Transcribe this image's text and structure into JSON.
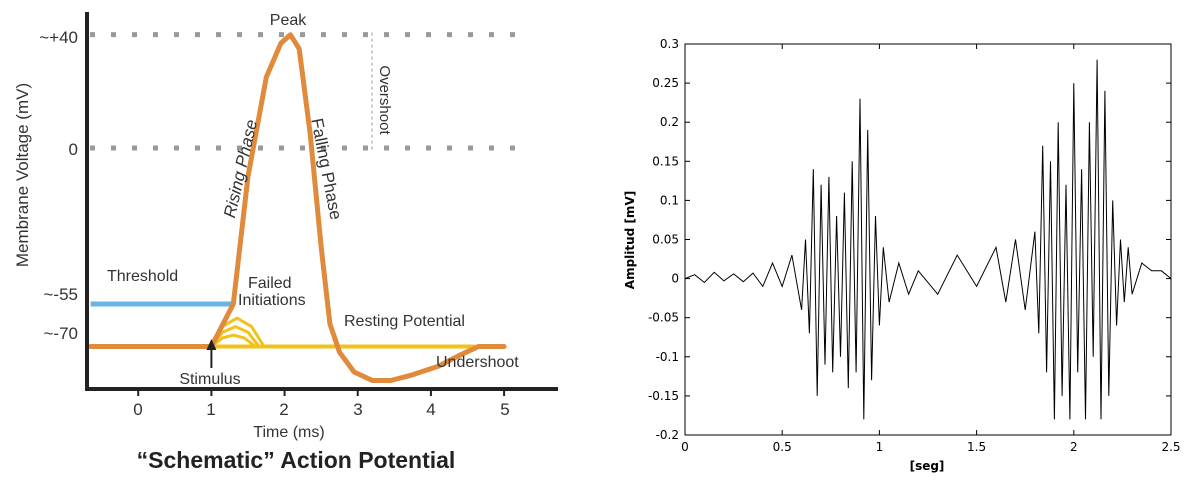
{
  "left": {
    "title": "“Schematic” Action Potential",
    "ylabel": "Membrane Voltage (mV)",
    "xlabel": "Time (ms)",
    "ytick_labels": [
      "~+40",
      "0",
      "~-55",
      "~-70"
    ],
    "xtick_labels": [
      "0",
      "1",
      "2",
      "3",
      "4",
      "5"
    ],
    "annotations": {
      "peak": "Peak",
      "rising": "Rising Phase",
      "falling": "Falling Phase",
      "overshoot": "Overshoot",
      "threshold": "Threshold",
      "failed_1": "Failed",
      "failed_2": "Initiations",
      "resting": "Resting Potential",
      "undershoot": "Undershoot",
      "stimulus": "Stimulus"
    },
    "colors": {
      "action_potential": "#e08a3c",
      "threshold": "#6ab4e6",
      "failed": "#f2c21b",
      "resting": "#f2c21b",
      "dotted": "#9a9a9a",
      "axis": "#222222"
    }
  },
  "chart_data": [
    {
      "type": "line",
      "title": "“Schematic” Action Potential",
      "xlabel": "Time (ms)",
      "ylabel": "Membrane Voltage (mV)",
      "xlim": [
        -0.7,
        5.6
      ],
      "ylim": [
        -85,
        48
      ],
      "reference_levels": [
        {
          "value": 40,
          "label": "~+40",
          "style": "dotted"
        },
        {
          "value": 0,
          "label": "0",
          "style": "dotted"
        },
        {
          "value": -55,
          "label": "~-55",
          "label_line": "Threshold"
        },
        {
          "value": -70,
          "label": "~-70",
          "label_line": "Resting Potential"
        }
      ],
      "action_potential": {
        "x": [
          -0.65,
          1.0,
          1.3,
          1.5,
          1.75,
          1.95,
          2.08,
          2.2,
          2.35,
          2.5,
          2.62,
          2.75,
          2.95,
          3.2,
          3.45,
          3.75,
          4.1,
          4.4,
          4.65,
          5.0
        ],
        "y": [
          -70,
          -70,
          -55,
          -10,
          25,
          37,
          40,
          35,
          5,
          -35,
          -62,
          -72,
          -79,
          -82,
          -82,
          -80,
          -77,
          -73,
          -70,
          -70
        ]
      },
      "threshold": {
        "x": [
          -0.65,
          1.3
        ],
        "y": [
          -55,
          -55
        ]
      },
      "resting_potential": {
        "x": [
          1.0,
          4.6
        ],
        "y": [
          -70,
          -70
        ]
      },
      "failed_initiations": [
        {
          "x": [
            1.0,
            1.15,
            1.3,
            1.45,
            1.6
          ],
          "y": [
            -70,
            -67,
            -66,
            -67,
            -70
          ]
        },
        {
          "x": [
            1.0,
            1.15,
            1.33,
            1.5,
            1.65
          ],
          "y": [
            -70,
            -65,
            -63,
            -65,
            -70
          ]
        },
        {
          "x": [
            1.0,
            1.15,
            1.35,
            1.55,
            1.72
          ],
          "y": [
            -70,
            -63,
            -60,
            -63,
            -70
          ]
        }
      ],
      "stimulus_time": 1.0
    },
    {
      "type": "line",
      "xlabel": "[seg]",
      "ylabel": "Amplitud [mV]",
      "xlim": [
        0,
        2.5
      ],
      "ylim": [
        -0.2,
        0.3
      ],
      "xticks": [
        0,
        0.5,
        1,
        1.5,
        2,
        2.5
      ],
      "xtick_labels": [
        "0",
        "0.5",
        "1",
        "1.5",
        "2",
        "2.5"
      ],
      "yticks": [
        -0.2,
        -0.15,
        -0.1,
        -0.05,
        0,
        0.05,
        0.1,
        0.15,
        0.2,
        0.25,
        0.3
      ],
      "ytick_labels": [
        "-0.2",
        "-0.15",
        "-0.1",
        "-0.05",
        "0",
        "0.05",
        "0.1",
        "0.15",
        "0.2",
        "0.25",
        "0.3"
      ],
      "grid": false,
      "series": [
        {
          "x": [
            0,
            0.05,
            0.1,
            0.15,
            0.2,
            0.25,
            0.3,
            0.35,
            0.4,
            0.45,
            0.5,
            0.55,
            0.6,
            0.62,
            0.64,
            0.66,
            0.68,
            0.7,
            0.72,
            0.74,
            0.76,
            0.78,
            0.8,
            0.82,
            0.84,
            0.86,
            0.88,
            0.9,
            0.92,
            0.94,
            0.96,
            0.98,
            1.0,
            1.02,
            1.05,
            1.1,
            1.15,
            1.2,
            1.3,
            1.4,
            1.5,
            1.6,
            1.65,
            1.7,
            1.75,
            1.8,
            1.82,
            1.84,
            1.86,
            1.88,
            1.9,
            1.92,
            1.94,
            1.96,
            1.98,
            2.0,
            2.02,
            2.04,
            2.06,
            2.08,
            2.1,
            2.12,
            2.14,
            2.16,
            2.18,
            2.2,
            2.22,
            2.24,
            2.26,
            2.28,
            2.3,
            2.35,
            2.4,
            2.45,
            2.5
          ],
          "y": [
            0,
            0.005,
            -0.005,
            0.008,
            -0.003,
            0.006,
            -0.004,
            0.007,
            -0.01,
            0.02,
            -0.01,
            0.03,
            -0.04,
            0.05,
            -0.07,
            0.14,
            -0.15,
            0.12,
            -0.11,
            0.13,
            -0.12,
            0.08,
            -0.1,
            0.11,
            -0.14,
            0.15,
            -0.12,
            0.23,
            -0.18,
            0.19,
            -0.13,
            0.08,
            -0.06,
            0.04,
            -0.03,
            0.02,
            -0.02,
            0.01,
            -0.02,
            0.03,
            -0.01,
            0.04,
            -0.03,
            0.05,
            -0.04,
            0.06,
            -0.07,
            0.17,
            -0.12,
            0.15,
            -0.18,
            0.2,
            -0.15,
            0.12,
            -0.18,
            0.25,
            -0.12,
            0.14,
            -0.18,
            0.2,
            -0.1,
            0.28,
            -0.18,
            0.24,
            -0.15,
            0.1,
            -0.06,
            0.05,
            -0.03,
            0.04,
            -0.02,
            0.02,
            0.01,
            0.01,
            0
          ]
        }
      ]
    }
  ]
}
